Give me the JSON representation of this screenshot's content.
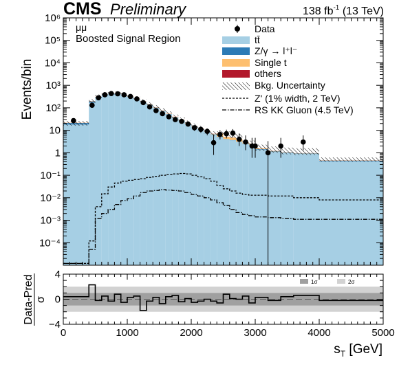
{
  "header": {
    "experiment": "CMS",
    "status": "Preliminary",
    "lumi_prefix": "138 fb",
    "lumi_exponent": "-1",
    "lumi_suffix": " (13 TeV)"
  },
  "annotations": {
    "channel": "μμ",
    "region": "Boosted Signal Region"
  },
  "legend": {
    "data": "Data",
    "ttbar": "tt̄",
    "zgamma": "Z/γ → l⁺l⁻",
    "singlet": "Single t",
    "others": "others",
    "bkg_unc": "Bkg. Uncertainty",
    "zprime": "Z' (1% width, 2 TeV)",
    "kkgluon": "RS KK Gluon (4.5 TeV)"
  },
  "colors": {
    "ttbar": "#a6cfe4",
    "zgamma": "#2c7bb6",
    "singlet": "#fdbf6f",
    "others": "#b2182b",
    "band1": "#a0a0a0",
    "band2": "#d2d2d2"
  },
  "chart_data": [
    {
      "type": "bar",
      "title": "",
      "xlabel": "",
      "ylabel": "Events/bin",
      "xlim": [
        0,
        5000
      ],
      "ylim": [
        1e-05,
        1000000
      ],
      "yscale": "log",
      "yticks": [
        "10⁻⁴",
        "10⁻³",
        "10⁻²",
        "10⁻¹",
        "1",
        "10",
        "10²",
        "10³",
        "10⁴",
        "10⁵",
        "10⁶"
      ],
      "bin_edges": [
        0,
        400,
        500,
        600,
        700,
        800,
        900,
        1000,
        1100,
        1200,
        1300,
        1400,
        1500,
        1600,
        1700,
        1800,
        1900,
        2000,
        2100,
        2200,
        2300,
        2400,
        2500,
        2600,
        2700,
        2800,
        2900,
        3000,
        3200,
        3400,
        3600,
        4000,
        5000
      ],
      "series": [
        {
          "name": "tt̄",
          "values": [
            18,
            170,
            270,
            360,
            420,
            400,
            350,
            300,
            240,
            185,
            135,
            100,
            72,
            52,
            38,
            27,
            19,
            14,
            11,
            8.5,
            6.5,
            5,
            4,
            3.6,
            3,
            2.5,
            2.2,
            1.4,
            1.1,
            1.0,
            0.9,
            0.42
          ]
        },
        {
          "name": "Z/γ → l⁺l⁻",
          "values": [
            3,
            22,
            30,
            30,
            25,
            18,
            13,
            9,
            6,
            4.2,
            3,
            2.1,
            1.5,
            1.1,
            0.8,
            0.6,
            0.45,
            0.34,
            0.26,
            0.2,
            0.16,
            0.13,
            0.11,
            0.1,
            0.09,
            0.08,
            0.07,
            0.06,
            0.05,
            0.04,
            0.035,
            0.03
          ]
        },
        {
          "name": "Single t",
          "values": [
            0.6,
            6,
            10,
            14,
            14,
            12,
            10,
            9,
            7,
            5.5,
            4,
            3,
            2.3,
            1.7,
            1.3,
            1,
            0.8,
            0.6,
            0.5,
            0.4,
            0.3,
            2.1,
            1.0,
            1.0,
            0.9,
            0.3,
            0.2,
            0.1,
            0.05,
            0.03,
            0.02,
            0.01
          ]
        },
        {
          "name": "others",
          "values": [
            0.1,
            1.5,
            2.5,
            3.5,
            3.5,
            3,
            2.5,
            2,
            1.6,
            1.2,
            0.9,
            0.7,
            0.5,
            0.4,
            0.3,
            0.22,
            0.17,
            0.13,
            0.1,
            0.08,
            0.06,
            0.05,
            0.04,
            0.03,
            0.025,
            0.02,
            0.015,
            0.01,
            0.008,
            0.006,
            0.005,
            0.003
          ]
        },
        {
          "name": "Bkg. Uncertainty",
          "lower": [
            16,
            160,
            260,
            350,
            400,
            380,
            330,
            280,
            220,
            170,
            120,
            90,
            65,
            47,
            34,
            24,
            17,
            12,
            9,
            7,
            5.5,
            5,
            5,
            4.5,
            4,
            2.5,
            2,
            1.2,
            1.0,
            0.85,
            0.8,
            0.4
          ],
          "upper": [
            26,
            240,
            390,
            500,
            560,
            520,
            450,
            390,
            310,
            240,
            180,
            130,
            95,
            70,
            50,
            37,
            27,
            20,
            16,
            12,
            9,
            9,
            9,
            8,
            7,
            3.8,
            3.5,
            2.3,
            1.9,
            1.7,
            1.6,
            0.62
          ]
        },
        {
          "name": "Z' (1% width, 2 TeV)",
          "values": [
            1.2e-05,
            0.00012,
            0.004,
            0.015,
            0.03,
            0.045,
            0.055,
            0.06,
            0.065,
            0.07,
            0.08,
            0.09,
            0.1,
            0.11,
            0.115,
            0.12,
            0.115,
            0.1,
            0.085,
            0.07,
            0.055,
            0.035,
            0.025,
            0.02,
            0.016,
            0.014,
            0.013,
            0.013,
            0.012,
            0.012,
            0.01,
            0.008
          ]
        },
        {
          "name": "RS KK Gluon (4.5 TeV)",
          "values": [
            1.2e-05,
            5e-05,
            0.0012,
            0.002,
            0.003,
            0.005,
            0.0075,
            0.009,
            0.012,
            0.017,
            0.02,
            0.021,
            0.023,
            0.022,
            0.021,
            0.02,
            0.017,
            0.014,
            0.012,
            0.01,
            0.008,
            0.006,
            0.0045,
            0.003,
            0.0022,
            0.0018,
            0.0016,
            0.0014,
            0.0013,
            0.0012,
            0.0011,
            0.0011
          ]
        }
      ],
      "data_points": {
        "name": "Data",
        "x": [
          160,
          450,
          550,
          650,
          750,
          850,
          950,
          1050,
          1150,
          1250,
          1350,
          1450,
          1550,
          1650,
          1750,
          1850,
          1950,
          2050,
          2150,
          2250,
          2350,
          2450,
          2550,
          2650,
          2750,
          2850,
          2950,
          3000,
          3200,
          3400,
          3750
        ],
        "y": [
          27,
          130,
          280,
          380,
          430,
          420,
          380,
          320,
          250,
          170,
          110,
          75,
          55,
          40,
          30,
          25,
          19,
          13,
          11,
          9,
          2.8,
          6.5,
          7,
          7.5,
          4,
          3,
          2,
          2,
          1,
          2,
          3
        ],
        "yerr_low": [
          5,
          12,
          17,
          19,
          21,
          20,
          19,
          18,
          16,
          13,
          10,
          8.5,
          7.4,
          6.3,
          5.5,
          5,
          4.4,
          3.6,
          3.3,
          3,
          2,
          2.6,
          2.6,
          2.7,
          2,
          1.7,
          1.4,
          1.4,
          1,
          1.4,
          1.7
        ],
        "yerr_high": [
          5,
          12,
          17,
          19,
          21,
          20,
          19,
          18,
          16,
          13,
          10,
          8.5,
          7.4,
          6.3,
          5.5,
          5,
          4.4,
          3.6,
          3.3,
          3,
          3.7,
          3.6,
          3.7,
          3.8,
          3.2,
          2.9,
          2.6,
          2.6,
          2.3,
          2.6,
          2.9
        ]
      }
    },
    {
      "type": "line",
      "title": "",
      "xlabel": "s_T [GeV]",
      "ylabel": "Data-Pred / σ",
      "ylabel_num": "Data-Pred",
      "ylabel_den": "σ",
      "xlim": [
        0,
        5000
      ],
      "ylim": [
        -4,
        4
      ],
      "xticks": [
        0,
        1000,
        2000,
        3000,
        4000,
        5000
      ],
      "yticks": [
        -4,
        0,
        4
      ],
      "bands": [
        {
          "name": "1σ",
          "range": [
            -1,
            1
          ]
        },
        {
          "name": "2σ",
          "range": [
            -2,
            2
          ]
        }
      ],
      "bin_edges": [
        0,
        400,
        500,
        600,
        700,
        800,
        900,
        1000,
        1100,
        1200,
        1300,
        1400,
        1500,
        1600,
        1700,
        1800,
        1900,
        2000,
        2100,
        2200,
        2300,
        2400,
        2500,
        2600,
        2700,
        2800,
        2900,
        3000,
        3200,
        3400,
        3600,
        4000,
        5000
      ],
      "values": [
        0.4,
        2.3,
        -0.2,
        0.5,
        -0.3,
        0.8,
        -0.5,
        0.3,
        0.5,
        -1.8,
        -0.3,
        0.3,
        -0.7,
        0.4,
        0.6,
        -0.4,
        0.1,
        -0.5,
        -0.3,
        0.0,
        -0.3,
        -0.6,
        0.8,
        0.1,
        0.0,
        0.5,
        -0.6,
        0.3,
        -0.2,
        0.4,
        0.6,
        -0.2
      ]
    }
  ]
}
